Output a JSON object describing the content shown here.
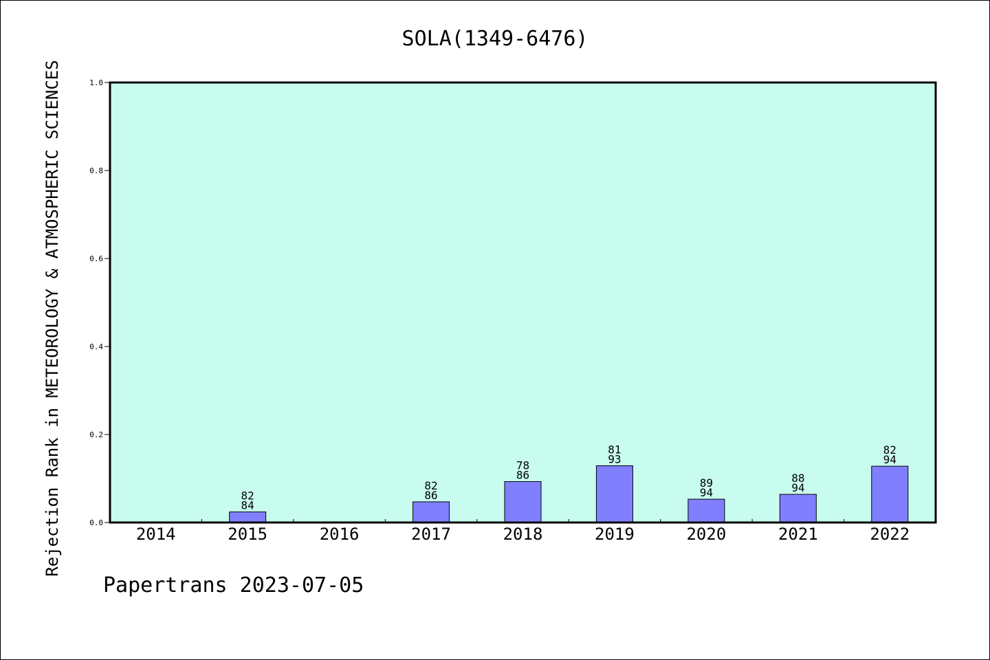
{
  "chart_data": {
    "type": "bar",
    "title": "SOLA(1349-6476)",
    "xlabel": "",
    "ylabel": "Rejection Rank in METEOROLOGY & ATMOSPHERIC SCIENCES",
    "ylim": [
      0,
      1.0
    ],
    "yticks": [
      "0.0",
      "0.2",
      "0.4",
      "0.6",
      "0.8",
      "1.0"
    ],
    "categories": [
      "2014",
      "2015",
      "2016",
      "2017",
      "2018",
      "2019",
      "2020",
      "2021",
      "2022"
    ],
    "values": [
      null,
      0.024,
      null,
      0.047,
      0.093,
      0.129,
      0.053,
      0.064,
      0.128
    ],
    "bar_labels": [
      null,
      [
        "82",
        "84"
      ],
      null,
      [
        "82",
        "86"
      ],
      [
        "78",
        "86"
      ],
      [
        "81",
        "93"
      ],
      [
        "89",
        "94"
      ],
      [
        "88",
        "94"
      ],
      [
        "82",
        "94"
      ]
    ],
    "grid": false,
    "colors": {
      "plot_background": "#c8fcee",
      "bar_fill": "#8080ff",
      "bar_stroke": "#000000"
    }
  },
  "footer": {
    "text": "Papertrans 2023-07-05"
  }
}
